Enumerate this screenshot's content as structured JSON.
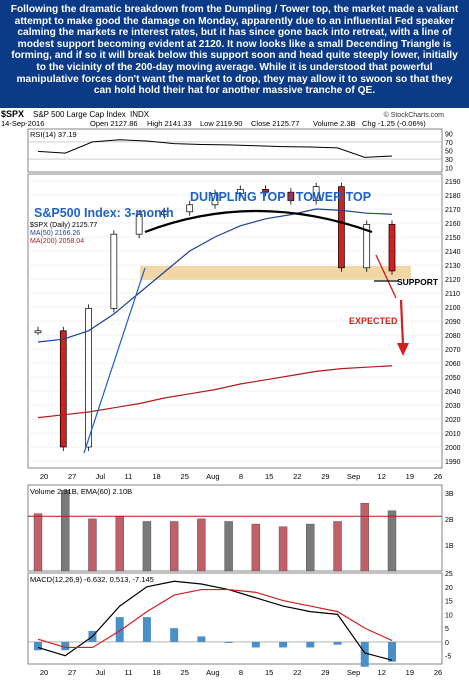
{
  "commentary": "Following the dramatic breakdown from the Dumpling / Tower top, the market made a valiant attempt to make good the damage on Monday, apparently due to an influential Fed speaker calming the markets re interest rates, but it has since gone back into retreat, with a line of modest support becoming evident at 2120. It now looks like a small Decending Triangle is forming, and if so it will break below this support soon and head quite steeply lower, initially to the vicinity of the 200-day moving average. While it is understood that powerful manipulative forces don't want the market to drop, they may allow it to swoon so that they can hold hold their hat for another massive tranche of QE.",
  "header": {
    "symbol": "$SPX",
    "name": "S&P 500 Large Cap Index",
    "exchange": "INDX",
    "date": "14-Sep-2016",
    "open": "Open 2127.86",
    "high": "High 2141.33",
    "low": "Low 2119.90",
    "close": "Close 2125.77",
    "volume": "Volume 2.3B",
    "change": "Chg -1.25 (-0.06%)",
    "credit": "© StockCharts.com"
  },
  "rsi": {
    "label": "RSI(14) 37.19",
    "ticks": [
      "90",
      "70",
      "50",
      "30",
      "10"
    ]
  },
  "price_panel": {
    "index_title": "S&P500 Index: 3-month",
    "pattern_title": "DUMPLING TOP / TOWER TOP",
    "legend_daily": "$SPX (Daily) 2125.77",
    "legend_ma50": "MA(50) 2166.26",
    "legend_ma200": "MA(200) 2058.04",
    "support_label": "SUPPORT",
    "expected_label": "EXPECTED",
    "ticks": [
      "2190",
      "2180",
      "2170",
      "2160",
      "2150",
      "2140",
      "2130",
      "2120",
      "2110",
      "2100",
      "2090",
      "2080",
      "2070",
      "2060",
      "2050",
      "2040",
      "2030",
      "2020",
      "2010",
      "2000",
      "1990"
    ]
  },
  "volume_panel": {
    "label": "Volume 2.31B, EMA(60) 2.10B",
    "ticks": [
      "3B",
      "2B",
      "1B"
    ]
  },
  "macd_panel": {
    "label": "MACD(12,26,9) -6.632, 0.513, -7.145",
    "ticks": [
      "25",
      "20",
      "15",
      "10",
      "5",
      "0",
      "-5"
    ]
  },
  "x_labels": [
    "20",
    "27",
    "Jul",
    "11",
    "18",
    "25",
    "Aug",
    "8",
    "15",
    "22",
    "29",
    "Sep",
    "12",
    "19",
    "26"
  ],
  "colors": {
    "header_bg": "#0b3a86",
    "ma50": "#1f3f9a",
    "ma200": "#b01c1c",
    "volume_bar_up": "#c06068",
    "volume_bar_down": "#7a7a7a",
    "macd_hist": "#4a90c8",
    "support_zone": "#f2d7a6",
    "annotation_blue": "#1d62c9",
    "annotation_red": "#d21f1f"
  },
  "chart_data": [
    {
      "type": "line",
      "title": "RSI(14)",
      "x": [
        "Jun 20",
        "Jun 27",
        "Jul 5",
        "Jul 11",
        "Jul 18",
        "Jul 25",
        "Aug 1",
        "Aug 8",
        "Aug 15",
        "Aug 22",
        "Aug 29",
        "Sep 6",
        "Sep 12",
        "Sep 14"
      ],
      "series": [
        {
          "name": "RSI(14)",
          "values": [
            48,
            44,
            70,
            75,
            72,
            66,
            64,
            63,
            61,
            59,
            58,
            56,
            34,
            37.19
          ]
        }
      ],
      "ylim": [
        0,
        100
      ]
    },
    {
      "type": "bar",
      "title": "$SPX (Daily)",
      "x": [
        "Jun 20",
        "Jun 27",
        "Jul 5",
        "Jul 11",
        "Jul 18",
        "Jul 25",
        "Aug 1",
        "Aug 8",
        "Aug 15",
        "Aug 22",
        "Aug 29",
        "Sep 6",
        "Sep 9",
        "Sep 12",
        "Sep 14"
      ],
      "series": [
        {
          "name": "$SPX (Daily) 2125.77",
          "values": [
            2083,
            2000,
            2099,
            2152,
            2166,
            2168,
            2173,
            2181,
            2184,
            2182,
            2176,
            2186,
            2128,
            2159,
            2125.77
          ]
        },
        {
          "name": "MA(50) 2166.26",
          "values": [
            2075,
            2077,
            2083,
            2095,
            2110,
            2125,
            2140,
            2150,
            2158,
            2163,
            2166,
            2170,
            2169,
            2167,
            2166.26
          ]
        },
        {
          "name": "MA(200) 2058.04",
          "values": [
            2021,
            2023,
            2025,
            2028,
            2031,
            2035,
            2038,
            2041,
            2045,
            2048,
            2051,
            2054,
            2056,
            2057,
            2058.04
          ]
        }
      ],
      "ylim": [
        1985,
        2195
      ]
    },
    {
      "type": "bar",
      "title": "Volume",
      "x": [
        "Jun 20",
        "Jun 27",
        "Jul 5",
        "Jul 11",
        "Jul 18",
        "Jul 25",
        "Aug 1",
        "Aug 8",
        "Aug 15",
        "Aug 22",
        "Aug 29",
        "Sep 6",
        "Sep 9",
        "Sep 14"
      ],
      "series": [
        {
          "name": "Volume (B)",
          "values": [
            2.2,
            3.1,
            2.0,
            2.1,
            1.9,
            1.9,
            2.0,
            1.9,
            1.8,
            1.7,
            1.8,
            1.9,
            2.6,
            2.31
          ]
        }
      ],
      "ylim": [
        0,
        3.3
      ]
    },
    {
      "type": "line",
      "title": "MACD(12,26,9)",
      "x": [
        "Jun 20",
        "Jun 27",
        "Jul 5",
        "Jul 11",
        "Jul 18",
        "Jul 25",
        "Aug 1",
        "Aug 8",
        "Aug 15",
        "Aug 22",
        "Aug 29",
        "Sep 6",
        "Sep 12",
        "Sep 14"
      ],
      "series": [
        {
          "name": "MACD",
          "values": [
            -2,
            -5,
            2,
            13,
            20,
            22,
            21,
            19,
            16,
            13,
            11,
            10,
            -4,
            -6.632
          ]
        },
        {
          "name": "Signal",
          "values": [
            1,
            -2,
            -2,
            4,
            11,
            17,
            19,
            19,
            18,
            15,
            13,
            11,
            5,
            0.513
          ]
        },
        {
          "name": "Histogram",
          "values": [
            -3,
            -3,
            4,
            9,
            9,
            5,
            2,
            0,
            -2,
            -2,
            -2,
            -1,
            -9,
            -7.145
          ]
        }
      ],
      "ylim": [
        -8,
        25
      ]
    }
  ]
}
